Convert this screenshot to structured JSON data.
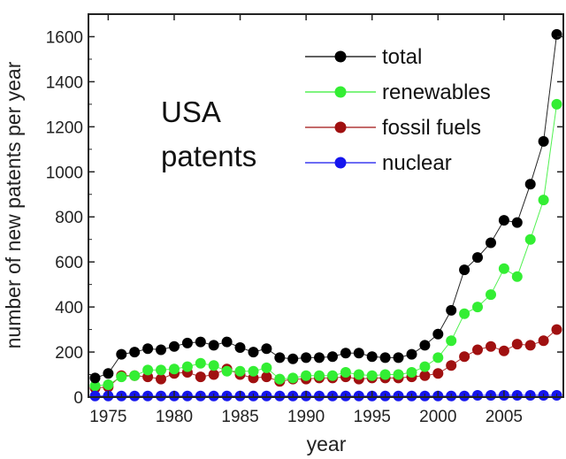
{
  "chart_data": {
    "type": "line",
    "title": "",
    "xlabel": "year",
    "ylabel": "number of new patents per year",
    "annotation": [
      "USA",
      "patents"
    ],
    "xlim": [
      1973.5,
      2009.5
    ],
    "ylim": [
      0,
      1700
    ],
    "xticks": [
      1975,
      1980,
      1985,
      1990,
      1995,
      2000,
      2005
    ],
    "yticks": [
      0,
      200,
      400,
      600,
      800,
      1000,
      1200,
      1400,
      1600
    ],
    "grid": false,
    "legend_position": "top-right",
    "x": [
      1974,
      1975,
      1976,
      1977,
      1978,
      1979,
      1980,
      1981,
      1982,
      1983,
      1984,
      1985,
      1986,
      1987,
      1988,
      1989,
      1990,
      1991,
      1992,
      1993,
      1994,
      1995,
      1996,
      1997,
      1998,
      1999,
      2000,
      2001,
      2002,
      2003,
      2004,
      2005,
      2006,
      2007,
      2008,
      2009
    ],
    "series": [
      {
        "name": "total",
        "color": "#000000",
        "values": [
          85,
          105,
          190,
          200,
          215,
          210,
          225,
          240,
          245,
          230,
          245,
          220,
          200,
          215,
          175,
          170,
          175,
          175,
          180,
          195,
          195,
          180,
          175,
          175,
          190,
          230,
          280,
          385,
          565,
          620,
          685,
          785,
          775,
          945,
          1135,
          1610
        ]
      },
      {
        "name": "renewables",
        "color": "#33ee33",
        "values": [
          50,
          55,
          90,
          95,
          120,
          120,
          125,
          135,
          150,
          140,
          115,
          115,
          115,
          130,
          80,
          85,
          95,
          95,
          95,
          110,
          100,
          95,
          100,
          100,
          110,
          135,
          175,
          250,
          370,
          400,
          455,
          570,
          535,
          700,
          875,
          1300
        ]
      },
      {
        "name": "fossil fuels",
        "color": "#a01010",
        "values": [
          40,
          45,
          95,
          95,
          90,
          80,
          105,
          110,
          90,
          100,
          125,
          100,
          85,
          90,
          70,
          80,
          80,
          85,
          85,
          90,
          80,
          85,
          85,
          85,
          90,
          95,
          105,
          140,
          180,
          210,
          225,
          205,
          235,
          230,
          250,
          300
        ]
      },
      {
        "name": "nuclear",
        "color": "#1515ee",
        "values": [
          5,
          5,
          5,
          5,
          5,
          5,
          5,
          5,
          5,
          5,
          5,
          5,
          5,
          5,
          5,
          5,
          5,
          5,
          5,
          5,
          5,
          5,
          5,
          5,
          5,
          5,
          5,
          5,
          5,
          8,
          8,
          8,
          8,
          8,
          8,
          8
        ]
      }
    ]
  }
}
